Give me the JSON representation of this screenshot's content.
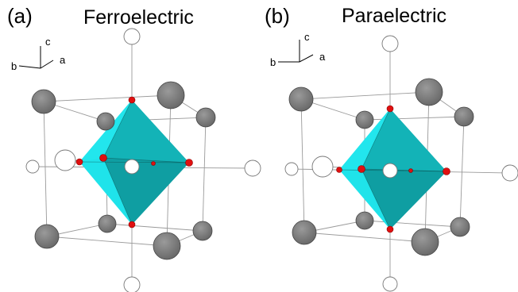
{
  "panels": [
    {
      "id": "a",
      "letter": "(a)",
      "title": "Ferroelectric",
      "axes": {
        "c": "c",
        "a": "a",
        "b": "b"
      }
    },
    {
      "id": "b",
      "letter": "(b)",
      "title": "Paraelectric",
      "axes": {
        "c": "c",
        "a": "a",
        "b": "b"
      }
    }
  ],
  "colors": {
    "octahedron_light": "#1fe3ea",
    "octahedron_mid": "#17c3c6",
    "octahedron_dark": "#10a6aa",
    "grey_atom": "#777777",
    "oxygen_atom": "#e01010",
    "white_atom": "#ffffff"
  },
  "icons": {
    "axis_triad": "axis-triad-icon"
  }
}
